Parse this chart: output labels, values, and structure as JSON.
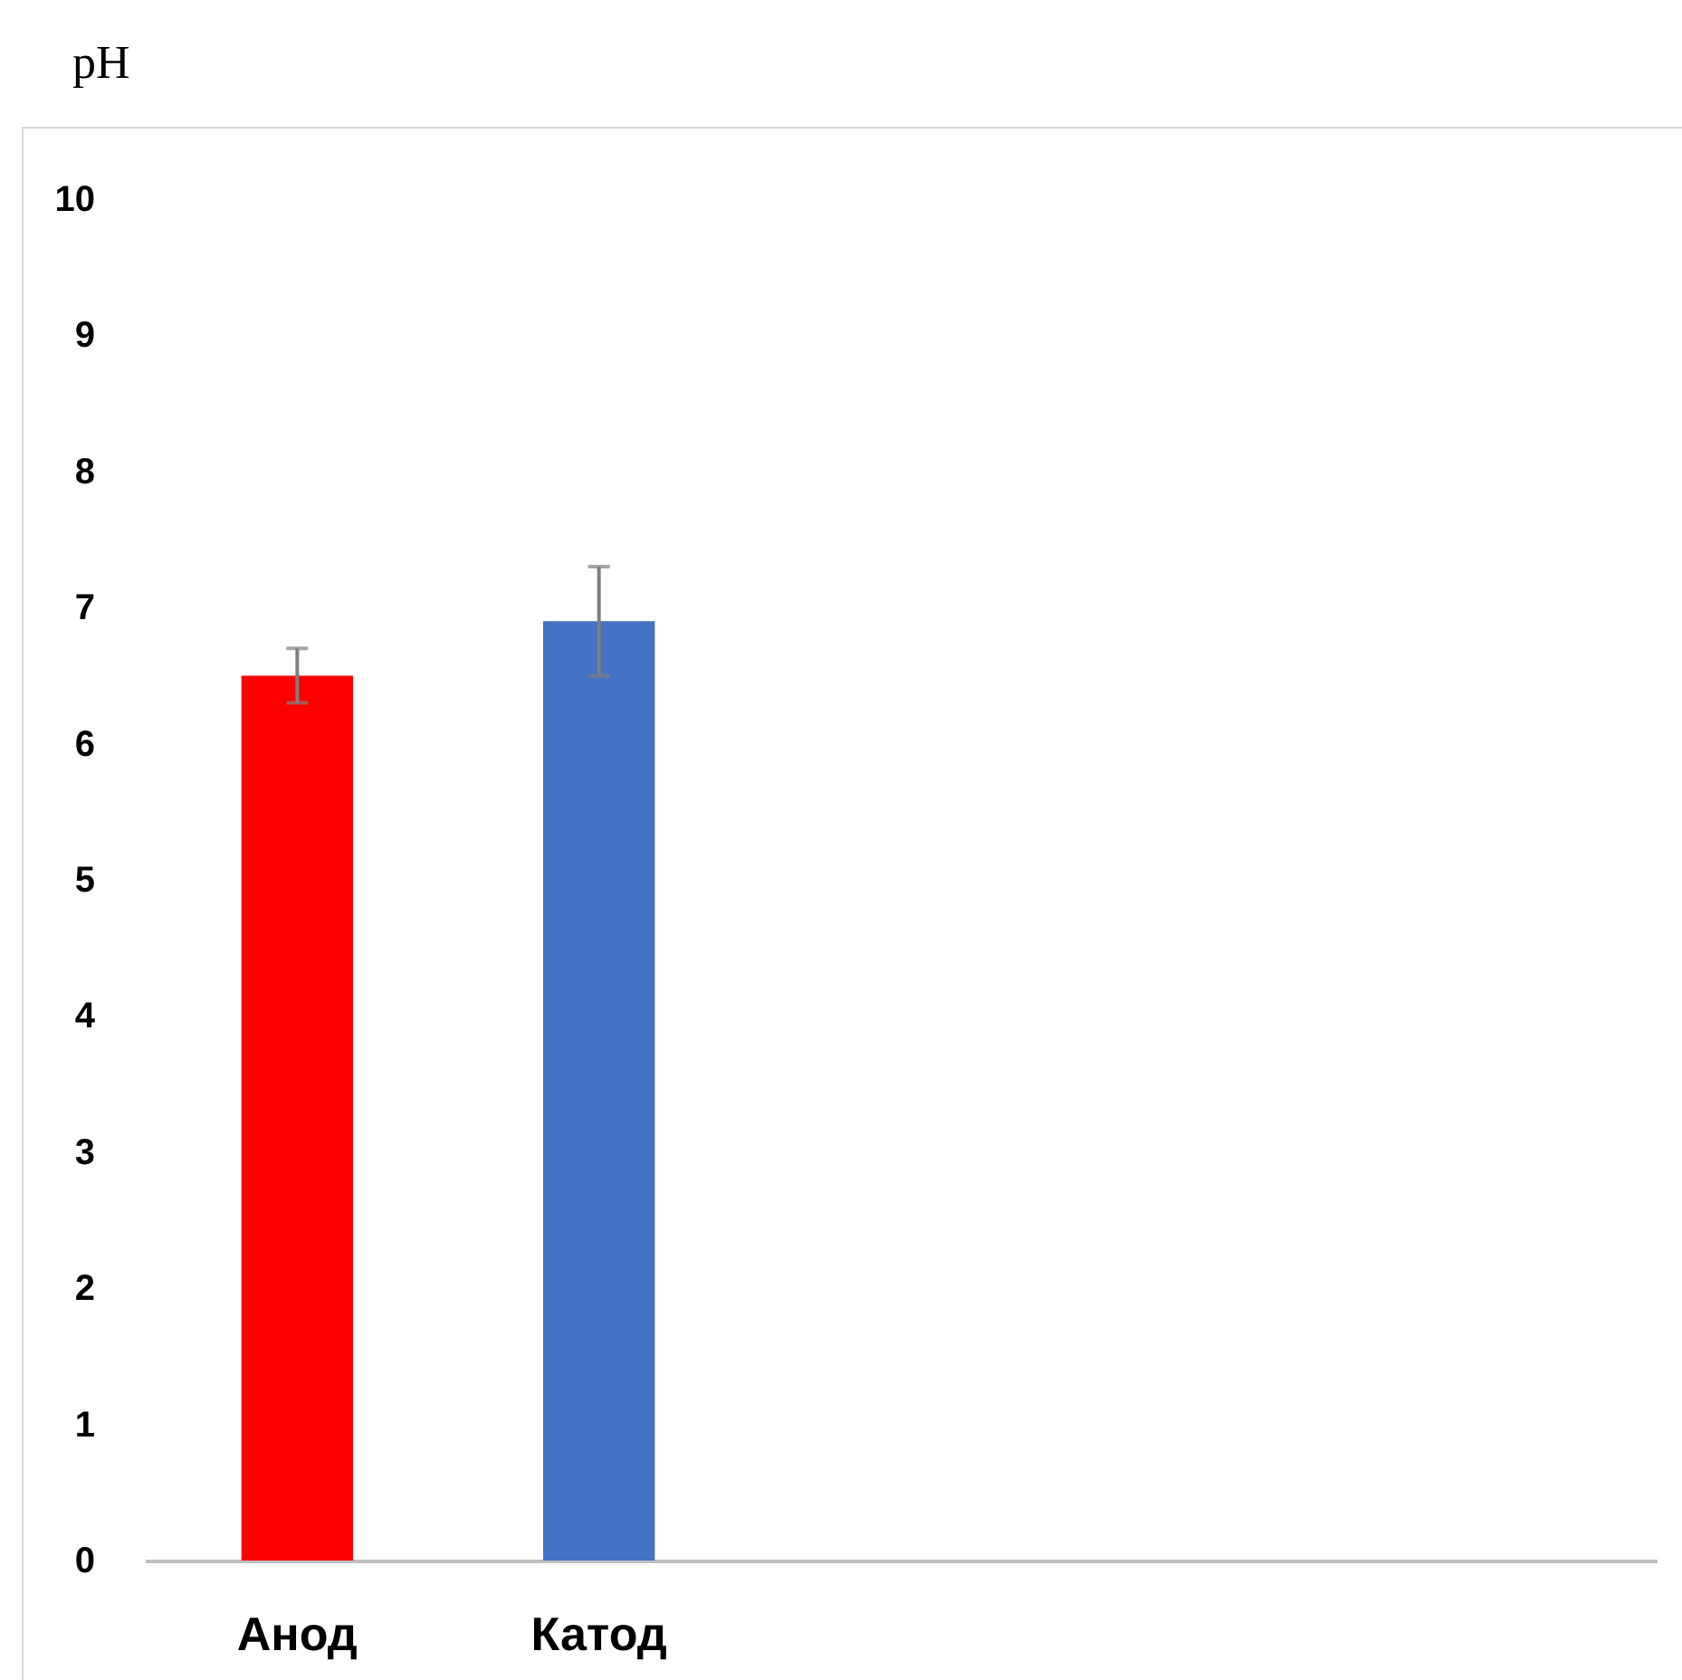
{
  "chart_data": {
    "type": "bar",
    "title": "pH",
    "categories": [
      "Анод",
      "Катод",
      null,
      null,
      null
    ],
    "values": [
      6.5,
      6.9,
      null,
      null,
      null
    ],
    "colors": [
      "#ff0000",
      "#4472c4",
      null,
      null,
      null
    ],
    "errors": [
      0.2,
      0.4,
      null,
      null,
      null
    ],
    "ylim": [
      0,
      10
    ],
    "yticks": [
      0,
      1,
      2,
      3,
      4,
      5,
      6,
      7,
      8,
      9,
      10
    ],
    "grid": false
  }
}
